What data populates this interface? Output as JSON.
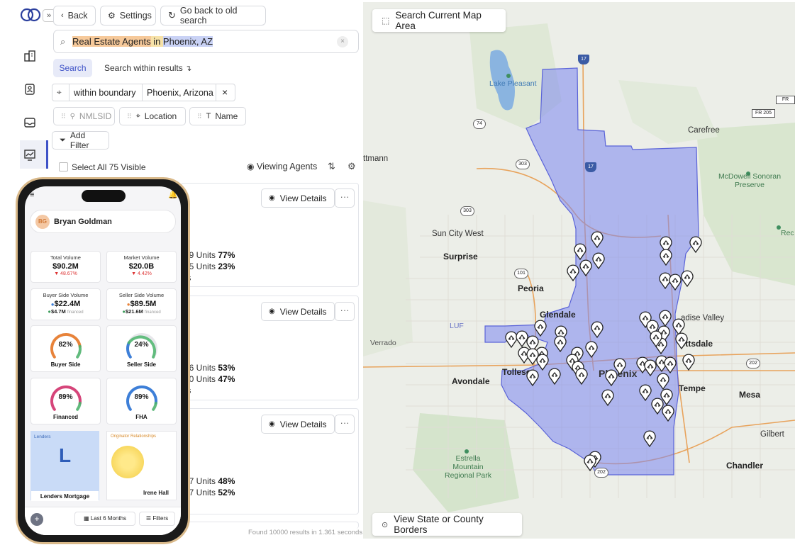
{
  "toolbar": {
    "back_label": "Back",
    "settings_label": "Settings",
    "old_search_label": "Go back to old search"
  },
  "search": {
    "query_part1": "Real Estate Agents",
    "query_in": " in ",
    "query_part2": "Phoenix, AZ",
    "search_tab": "Search",
    "within_results": "Search within results"
  },
  "boundary": {
    "type": "within boundary",
    "place": "Phoenix, Arizona"
  },
  "filters": {
    "nmlsid": "NMLSID",
    "location": "Location",
    "name": "Name",
    "add_filter": "Add Filter"
  },
  "results": {
    "select_all": "Select All 75 Visible",
    "viewing": "Viewing Agents",
    "found": "Found 10000 results in 1.361 seconds",
    "view_details": "View Details",
    "more": "···",
    "cards": [
      {
        "line0": "s",
        "line1_pre": "19 Units ",
        "line1_pct": "77%",
        "line2_pre": "25 Units ",
        "line2_pct": "23%",
        "line3": "ts"
      },
      {
        "line0": "",
        "line1_pre": "36 Units ",
        "line1_pct": "53%",
        "line2_pre": "10 Units ",
        "line2_pct": "47%",
        "line3": "ts"
      },
      {
        "line0": "",
        "line1_pre": "17 Units ",
        "line1_pct": "48%",
        "line2_pre": "97 Units ",
        "line2_pct": "52%",
        "line3": ""
      }
    ]
  },
  "map": {
    "search_area": "Search Current Map Area",
    "borders": "View State or County Borders",
    "region_color": "#7b86f0",
    "cities_bold": [
      "Surprise",
      "Peoria",
      "Glendale",
      "Tolleson",
      "Avondale",
      "Phoenix",
      "Tempe",
      "Mesa",
      "Chandler",
      "Scottsdale"
    ],
    "labels": {
      "lake_pleasant": "Lake Pleasant",
      "carefree": "Carefree",
      "mcdowell": "McDowell Sonoran Preserve",
      "sun_city_west": "Sun City West",
      "paradise_valley": "Paradise Valley",
      "verrado": "Verrado",
      "gilbert": "Gilbert",
      "estrella": "Estrella Mountain Regional Park",
      "luf": "LUF",
      "wittmann": "ttmann",
      "surprise": "Surprise",
      "peoria": "Peoria",
      "glendale": "Glendale",
      "tolleson": "Tolleson",
      "avondale": "Avondale",
      "phoenix": "Phoenix",
      "tempe": "Tempe",
      "mesa": "Mesa",
      "chandler": "Chandler",
      "scottsdale": "ottsdale",
      "paradise": "adise Valley",
      "mcdowell_b": "Rec",
      "fr205": "FR 205",
      "fr": "FR",
      "r17": "17",
      "r74": "74",
      "r303": "303",
      "r101": "101",
      "r202": "202"
    }
  },
  "phone": {
    "user_initials": "BG",
    "user_name": "Bryan Goldman",
    "total_volume_label": "Total Volume",
    "total_volume": "$90.2M",
    "total_delta": "▼ 48.67%",
    "market_volume_label": "Market Volume",
    "market_volume": "$20.0B",
    "market_delta": "▼ 4.42%",
    "buyer_vol_label": "Buyer Side Volume",
    "buyer_vol": "$22.4M",
    "buyer_fin": "$4.7M",
    "seller_vol_label": "Seller Side Volume",
    "seller_vol": "$89.5M",
    "seller_fin": "$21.6M",
    "financed_word": "financed",
    "gauges": [
      {
        "label": "Buyer Side",
        "pct": "82%",
        "value": 0.82,
        "color": "#e8833a"
      },
      {
        "label": "Seller Side",
        "pct": "24%",
        "value": 0.24,
        "color": "#3d7fd8"
      },
      {
        "label": "Financed",
        "pct": "89%",
        "value": 0.89,
        "color": "#d6457a"
      },
      {
        "label": "FHA",
        "pct": "89%",
        "value": 0.89,
        "color": "#3d7fd8"
      }
    ],
    "lenders_title": "Lenders",
    "lenders_letter": "L",
    "lenders_name": "Lenders Mortgage",
    "orig_title": "Originator Relationships",
    "orig_name": "Irene Hall",
    "range_label": "Last 6 Months",
    "filters_label": "Filters"
  }
}
